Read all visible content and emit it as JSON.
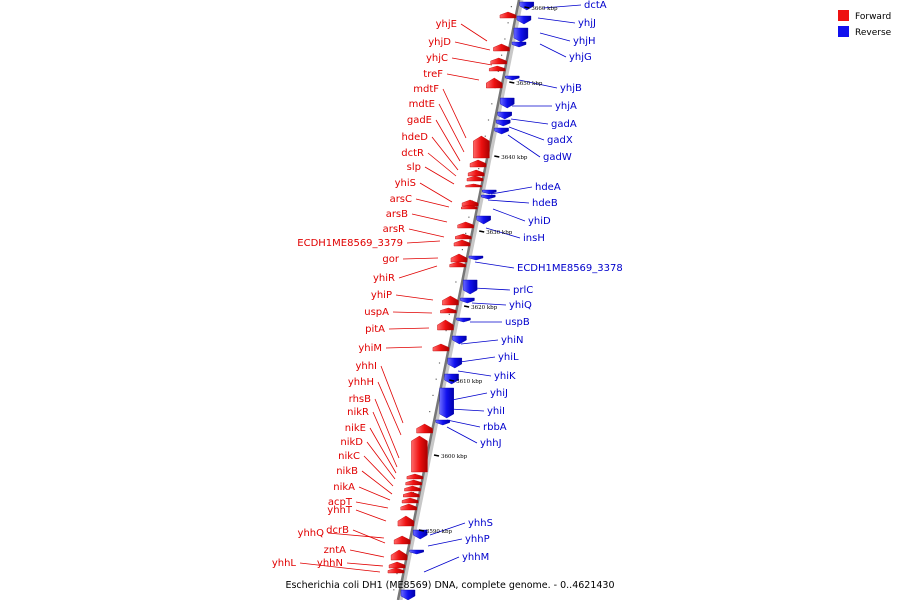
{
  "legend": {
    "forward": {
      "label": "Forward",
      "color": "#ee1111"
    },
    "reverse": {
      "label": "Reverse",
      "color": "#1111ee"
    }
  },
  "caption": "Escherichia coli DH1 (ME8569) DNA, complete genome. - 0..4621430",
  "kbp_marks": [
    "3660 kbp",
    "3650 kbp",
    "3640 kbp",
    "3630 kbp",
    "3620 kbp",
    "3610 kbp",
    "3600 kbp",
    "3590 kbp"
  ],
  "forward_labels": [
    "yhjE",
    "yhjD",
    "yhjC",
    "treF",
    "mdtF",
    "mdtE",
    "gadE",
    "hdeD",
    "dctR",
    "slp",
    "yhiS",
    "arsC",
    "arsB",
    "arsR",
    "ECDH1ME8569_3379",
    "gor",
    "yhiR",
    "yhiP",
    "uspA",
    "pitA",
    "yhiM",
    "yhhI",
    "yhhH",
    "rhsB",
    "nikR",
    "nikE",
    "nikD",
    "nikC",
    "nikB",
    "nikA",
    "acpT",
    "yhhT",
    "dcrB",
    "yhhQ",
    "zntA",
    "yhhN",
    "yhhL"
  ],
  "reverse_labels": [
    "dctA",
    "yhjJ",
    "yhjH",
    "yhjG",
    "yhjB",
    "yhjA",
    "gadA",
    "gadX",
    "gadW",
    "hdeA",
    "hdeB",
    "yhiD",
    "insH",
    "ECDH1ME8569_3378",
    "prlC",
    "yhiQ",
    "uspB",
    "yhiN",
    "yhiL",
    "yhiK",
    "yhiJ",
    "yhiI",
    "rbbA",
    "yhhJ",
    "yhhS",
    "yhhP",
    "yhhM"
  ]
}
